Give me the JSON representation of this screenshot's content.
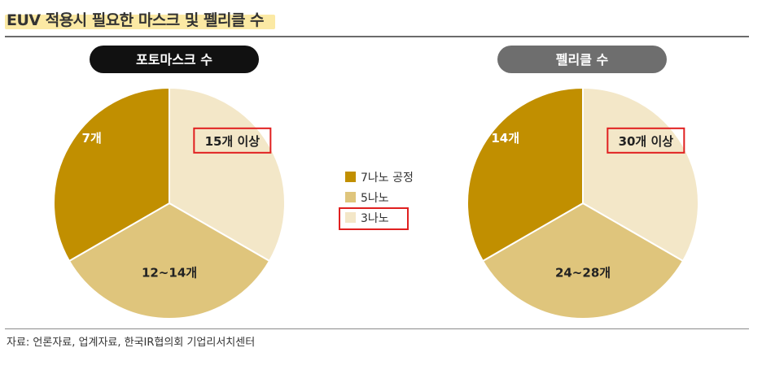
{
  "header": {
    "title": "EUV 적용시 필요한 마스크 및 펠리클 수"
  },
  "source": "자료: 언론자료, 업계자료, 한국IR협의회 기업리서치센터",
  "colors": {
    "nm7": "#c18f00",
    "nm5": "#dfc57c",
    "nm3": "#f3e7c8",
    "pill_photomask": "#111111",
    "pill_pellicle": "#6e6e6e",
    "highlight": "#e02020"
  },
  "chart_data": [
    {
      "type": "pie",
      "title": "포토마스크 수",
      "categories": [
        "3나노",
        "5나노",
        "7나노 공정"
      ],
      "values": [
        0.3333,
        0.3333,
        0.3333
      ],
      "labels": [
        "15개 이상",
        "12~14개",
        "7개"
      ],
      "highlight": "15개 이상"
    },
    {
      "type": "pie",
      "title": "펠리클 수",
      "categories": [
        "3나노",
        "5나노",
        "7나노 공정"
      ],
      "values": [
        0.3333,
        0.3333,
        0.3333
      ],
      "labels": [
        "30개 이상",
        "24~28개",
        "14개"
      ],
      "highlight": "30개 이상"
    }
  ],
  "legend": {
    "items": [
      {
        "label": "7나노 공정",
        "color": "#c18f00"
      },
      {
        "label": "5나노",
        "color": "#dfc57c"
      },
      {
        "label": "3나노",
        "color": "#f3e7c8"
      }
    ],
    "highlighted": "3나노"
  }
}
